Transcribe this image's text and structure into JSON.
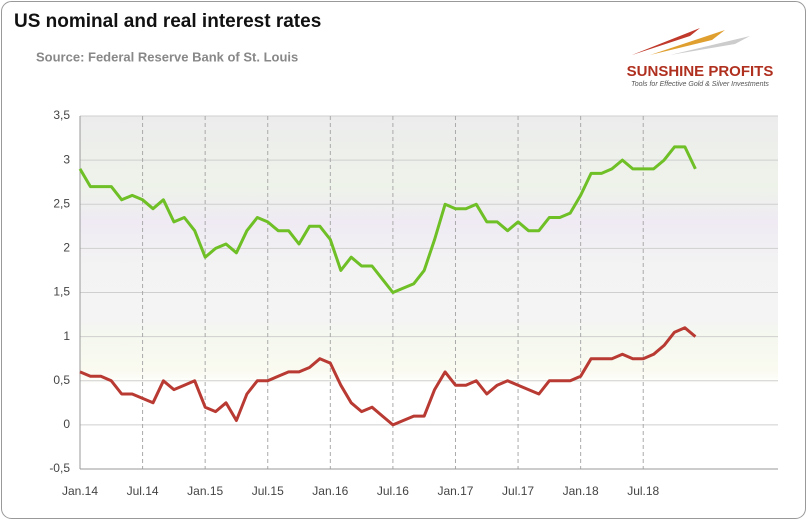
{
  "chart_data": {
    "type": "line",
    "title": "US nominal and real interest rates",
    "subtitle": "Source: Federal Reserve Bank of St. Louis",
    "logo": {
      "name": "SUNSHINE PROFITS",
      "tagline": "Tools for Effective Gold & Silver Investments"
    },
    "categories": [
      "Jan.14",
      null,
      null,
      null,
      null,
      null,
      "Jul.14",
      null,
      null,
      null,
      null,
      null,
      "Jan.15",
      null,
      null,
      null,
      null,
      null,
      "Jul.15",
      null,
      null,
      null,
      null,
      null,
      "Jan.16",
      null,
      null,
      null,
      null,
      null,
      "Jul.16",
      null,
      null,
      null,
      null,
      null,
      "Jan.17",
      null,
      null,
      null,
      null,
      null,
      "Jul.17",
      null,
      null,
      null,
      null,
      null,
      "Jan.18",
      null,
      null,
      null,
      null,
      null,
      "Jul.18",
      null,
      null,
      null,
      null,
      null
    ],
    "series": [
      {
        "color": "#6fbf26",
        "values": [
          2.9,
          2.7,
          2.7,
          2.7,
          2.55,
          2.6,
          2.55,
          2.45,
          2.55,
          2.3,
          2.35,
          2.2,
          1.9,
          2.0,
          2.05,
          1.95,
          2.2,
          2.35,
          2.3,
          2.2,
          2.2,
          2.05,
          2.25,
          2.25,
          2.1,
          1.75,
          1.9,
          1.8,
          1.8,
          1.65,
          1.5,
          1.55,
          1.6,
          1.75,
          2.1,
          2.5,
          2.45,
          2.45,
          2.5,
          2.3,
          2.3,
          2.2,
          2.3,
          2.2,
          2.2,
          2.35,
          2.35,
          2.4,
          2.6,
          2.85,
          2.85,
          2.9,
          3.0,
          2.9,
          2.9,
          2.9,
          3.0,
          3.15,
          3.15,
          2.9
        ]
      },
      {
        "color": "#b83a32",
        "values": [
          0.6,
          0.55,
          0.55,
          0.5,
          0.35,
          0.35,
          0.3,
          0.25,
          0.5,
          0.4,
          0.45,
          0.5,
          0.2,
          0.15,
          0.25,
          0.05,
          0.35,
          0.5,
          0.5,
          0.55,
          0.6,
          0.6,
          0.65,
          0.75,
          0.7,
          0.45,
          0.25,
          0.15,
          0.2,
          0.1,
          0.0,
          0.05,
          0.1,
          0.1,
          0.4,
          0.6,
          0.45,
          0.45,
          0.5,
          0.35,
          0.45,
          0.5,
          0.45,
          0.4,
          0.35,
          0.5,
          0.5,
          0.5,
          0.55,
          0.75,
          0.75,
          0.75,
          0.8,
          0.75,
          0.75,
          0.8,
          0.9,
          1.05,
          1.1,
          1.0
        ]
      }
    ],
    "ylim": [
      -0.5,
      3.5
    ],
    "yticks": [
      {
        "value": -0.5,
        "label": "-0,5"
      },
      0,
      {
        "value": 0.5,
        "label": "0,5"
      },
      1,
      {
        "value": 1.5,
        "label": "1,5"
      },
      2,
      {
        "value": 2.5,
        "label": "2,5"
      },
      3,
      {
        "value": 3.5,
        "label": "3,5"
      }
    ],
    "grid": true
  }
}
